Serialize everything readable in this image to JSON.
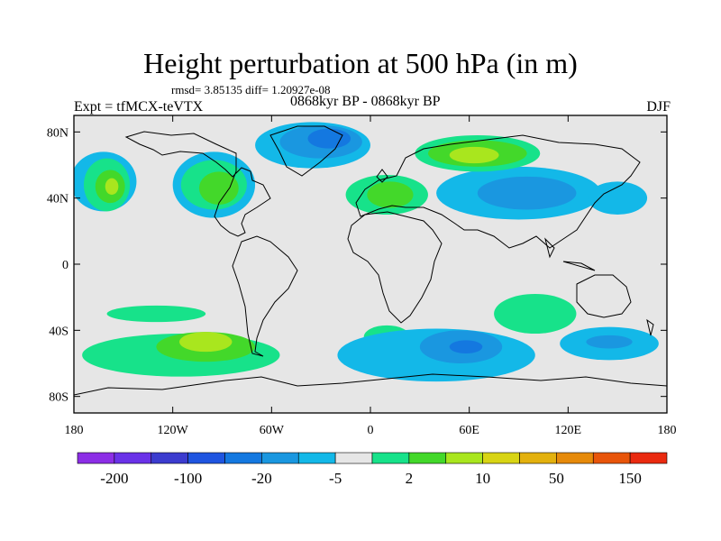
{
  "header": {
    "title": "Height perturbation at 500 hPa (in m)",
    "stats": "rmsd= 3.85135 diff= 1.20927e-08",
    "experiment": "Expt = tfMCX-teVTX",
    "period": "0868kyr BP - 0868kyr BP",
    "season": "DJF"
  },
  "map": {
    "lat_labels": [
      "80N",
      "40N",
      "0",
      "40S",
      "80S"
    ],
    "lat_values": [
      80,
      40,
      0,
      -40,
      -80
    ],
    "lon_labels": [
      "180",
      "120W",
      "60W",
      "0",
      "60E",
      "120E",
      "180"
    ],
    "lon_values": [
      -180,
      -120,
      -60,
      0,
      60,
      120,
      180
    ],
    "lon_range": [
      -180,
      180
    ],
    "lat_range": [
      -90,
      90
    ],
    "land_color": "#e6e6e6"
  },
  "colorbar": {
    "labels": [
      "-200",
      "-100",
      "-20",
      "-5",
      "2",
      "10",
      "50",
      "150"
    ],
    "label_box_index": [
      1,
      3,
      5,
      7,
      9,
      11,
      13,
      15
    ],
    "colors": [
      "#8c2ee6",
      "#6a32e8",
      "#3c3ccf",
      "#1f55e0",
      "#1478e0",
      "#1a97e0",
      "#13b8e8",
      "#e6e6e6",
      "#17e28a",
      "#43d82a",
      "#a9e61e",
      "#d8d414",
      "#e3b10e",
      "#e68a0a",
      "#e8550a",
      "#ea2a10"
    ]
  },
  "contours": [
    {
      "color": "#13b8e8",
      "cx": -162,
      "cy": 50,
      "rx": 20,
      "ry": 18
    },
    {
      "color": "#17e28a",
      "cx": -160,
      "cy": 48,
      "rx": 14,
      "ry": 16
    },
    {
      "color": "#43d82a",
      "cx": -158,
      "cy": 47,
      "rx": 9,
      "ry": 10
    },
    {
      "color": "#a9e61e",
      "cx": -157,
      "cy": 47,
      "rx": 4,
      "ry": 5
    },
    {
      "color": "#13b8e8",
      "cx": -95,
      "cy": 48,
      "rx": 25,
      "ry": 20
    },
    {
      "color": "#17e28a",
      "cx": -95,
      "cy": 48,
      "rx": 20,
      "ry": 15
    },
    {
      "color": "#43d82a",
      "cx": -92,
      "cy": 46,
      "rx": 12,
      "ry": 10
    },
    {
      "color": "#13b8e8",
      "cx": -35,
      "cy": 72,
      "rx": 35,
      "ry": 14
    },
    {
      "color": "#1a97e0",
      "cx": -30,
      "cy": 74,
      "rx": 25,
      "ry": 10
    },
    {
      "color": "#1478e0",
      "cx": -25,
      "cy": 76,
      "rx": 13,
      "ry": 6
    },
    {
      "color": "#17e28a",
      "cx": 10,
      "cy": 42,
      "rx": 25,
      "ry": 12
    },
    {
      "color": "#43d82a",
      "cx": 12,
      "cy": 42,
      "rx": 14,
      "ry": 8
    },
    {
      "color": "#13b8e8",
      "cx": 90,
      "cy": 43,
      "rx": 50,
      "ry": 16
    },
    {
      "color": "#1a97e0",
      "cx": 95,
      "cy": 43,
      "rx": 30,
      "ry": 10
    },
    {
      "color": "#17e28a",
      "cx": 65,
      "cy": 67,
      "rx": 38,
      "ry": 11
    },
    {
      "color": "#43d82a",
      "cx": 65,
      "cy": 67,
      "rx": 30,
      "ry": 8
    },
    {
      "color": "#a9e61e",
      "cx": 63,
      "cy": 66,
      "rx": 15,
      "ry": 5
    },
    {
      "color": "#13b8e8",
      "cx": 150,
      "cy": 40,
      "rx": 18,
      "ry": 10
    },
    {
      "color": "#17e28a",
      "cx": -115,
      "cy": -55,
      "rx": 60,
      "ry": 13
    },
    {
      "color": "#43d82a",
      "cx": -100,
      "cy": -50,
      "rx": 30,
      "ry": 9
    },
    {
      "color": "#a9e61e",
      "cx": -100,
      "cy": -47,
      "rx": 16,
      "ry": 6
    },
    {
      "color": "#17e28a",
      "cx": -130,
      "cy": -30,
      "rx": 30,
      "ry": 5
    },
    {
      "color": "#17e28a",
      "cx": 10,
      "cy": -44,
      "rx": 14,
      "ry": 7
    },
    {
      "color": "#43d82a",
      "cx": 12,
      "cy": -44,
      "rx": 6,
      "ry": 3
    },
    {
      "color": "#13b8e8",
      "cx": 40,
      "cy": -55,
      "rx": 60,
      "ry": 16
    },
    {
      "color": "#1a97e0",
      "cx": 55,
      "cy": -50,
      "rx": 25,
      "ry": 10
    },
    {
      "color": "#1478e0",
      "cx": 58,
      "cy": -50,
      "rx": 10,
      "ry": 4
    },
    {
      "color": "#17e28a",
      "cx": 100,
      "cy": -30,
      "rx": 25,
      "ry": 12
    },
    {
      "color": "#13b8e8",
      "cx": 145,
      "cy": -48,
      "rx": 30,
      "ry": 10
    },
    {
      "color": "#1a97e0",
      "cx": 145,
      "cy": -47,
      "rx": 14,
      "ry": 4
    }
  ]
}
